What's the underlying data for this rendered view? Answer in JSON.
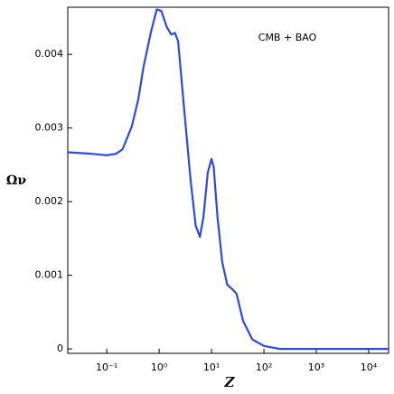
{
  "chart_data": {
    "type": "line",
    "annotation": "CMB + BAO",
    "xlabel": "Z",
    "ylabel": "Ων",
    "xscale": "log",
    "x": [
      0.018,
      0.05,
      0.1,
      0.15,
      0.2,
      0.3,
      0.4,
      0.5,
      0.7,
      0.9,
      1.1,
      1.4,
      1.7,
      2,
      2.3,
      3,
      4,
      5,
      6,
      7,
      8.5,
      10,
      11,
      13,
      16,
      20,
      25,
      30,
      40,
      60,
      100,
      200,
      1000,
      24000
    ],
    "series": [
      {
        "color": "#2f48e0",
        "values": [
          0.00267,
          0.00265,
          0.00263,
          0.00265,
          0.00271,
          0.00302,
          0.00339,
          0.00382,
          0.00431,
          0.00461,
          0.00459,
          0.00437,
          0.00427,
          0.00429,
          0.00418,
          0.00326,
          0.00228,
          0.00167,
          0.00152,
          0.00179,
          0.0024,
          0.00258,
          0.00247,
          0.00179,
          0.00118,
          0.00087,
          0.00081,
          0.00075,
          0.00038,
          0.00013,
          4e-05,
          0,
          0,
          0
        ]
      }
    ],
    "xlim": [
      0.018,
      24000
    ],
    "xticks": [
      {
        "value": 0.1,
        "label": "10⁻¹"
      },
      {
        "value": 1,
        "label": "10⁰"
      },
      {
        "value": 10,
        "label": "10¹"
      },
      {
        "value": 100,
        "label": "10²"
      },
      {
        "value": 1000,
        "label": "10³"
      },
      {
        "value": 10000,
        "label": "10⁴"
      }
    ],
    "ylim": [
      -6e-05,
      0.00464
    ],
    "yticks": [
      0,
      0.001,
      0.002,
      0.003,
      0.004
    ]
  }
}
